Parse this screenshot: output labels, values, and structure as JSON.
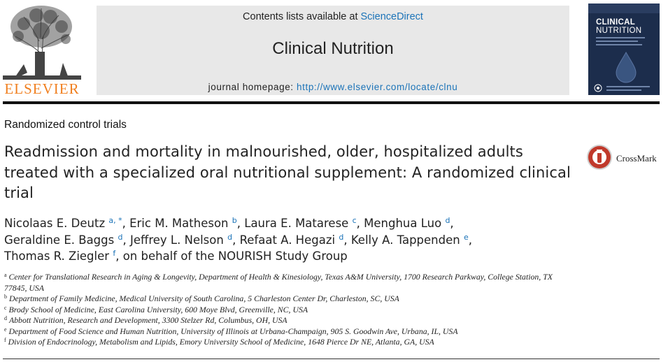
{
  "header": {
    "publisher": "ELSEVIER",
    "contents_prefix": "Contents lists available at ",
    "contents_link": "ScienceDirect",
    "journal_title": "Clinical Nutrition",
    "homepage_prefix": "journal homepage: ",
    "homepage_url": "http://www.elsevier.com/locate/clnu",
    "cover_title_1": "CLINICAL",
    "cover_title_2": "NUTRITION"
  },
  "article": {
    "section": "Randomized control trials",
    "title": "Readmission and mortality in malnourished, older, hospitalized adults treated with a specialized oral nutritional supplement: A randomized clinical trial",
    "crossmark": "CrossMark"
  },
  "authors": [
    {
      "name": "Nicolaas E. Deutz",
      "sup": "a, *"
    },
    {
      "name": "Eric M. Matheson",
      "sup": "b"
    },
    {
      "name": "Laura E. Matarese",
      "sup": "c"
    },
    {
      "name": "Menghua Luo",
      "sup": "d"
    },
    {
      "name": "Geraldine E. Baggs",
      "sup": "d"
    },
    {
      "name": "Jeffrey L. Nelson",
      "sup": "d"
    },
    {
      "name": "Refaat A. Hegazi",
      "sup": "d"
    },
    {
      "name": "Kelly A. Tappenden",
      "sup": "e"
    },
    {
      "name": "Thomas R. Ziegler",
      "sup": "f"
    }
  ],
  "authors_suffix": "on behalf of the NOURISH Study Group",
  "affiliations": [
    {
      "letter": "a",
      "text": "Center for Translational Research in Aging & Longevity, Department of Health & Kinesiology, Texas A&M University, 1700 Research Parkway, College Station, TX 77845, USA"
    },
    {
      "letter": "b",
      "text": "Department of Family Medicine, Medical University of South Carolina, 5 Charleston Center Dr, Charleston, SC, USA"
    },
    {
      "letter": "c",
      "text": "Brody School of Medicine, East Carolina University, 600 Moye Blvd, Greenville, NC, USA"
    },
    {
      "letter": "d",
      "text": "Abbott Nutrition, Research and Development, 3300 Stelzer Rd, Columbus, OH, USA"
    },
    {
      "letter": "e",
      "text": "Department of Food Science and Human Nutrition, University of Illinois at Urbana-Champaign, 905 S. Goodwin Ave, Urbana, IL, USA"
    },
    {
      "letter": "f",
      "text": "Division of Endocrinology, Metabolism and Lipids, Emory University School of Medicine, 1648 Pierce Dr NE, Atlanta, GA, USA"
    }
  ],
  "colors": {
    "link": "#1b73b8",
    "publisher": "#f07f1f",
    "banner": "#e8e8e8",
    "cover": "#1c2d4c"
  }
}
